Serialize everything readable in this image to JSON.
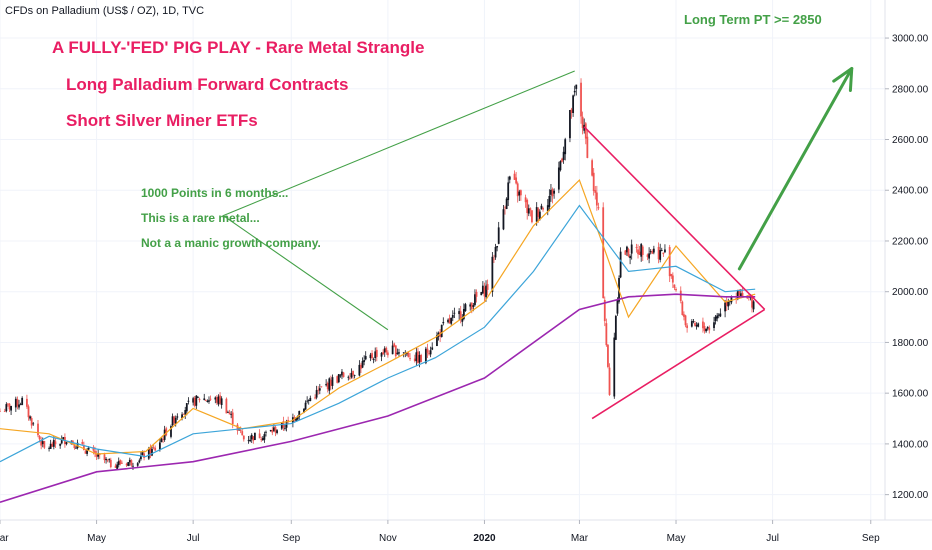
{
  "header": "CFDs on Palladium (US$ / OZ), 1D, TVC",
  "annotations": {
    "title_line1": "A FULLY-'FED' PIG PLAY - Rare Metal Strangle",
    "title_line2": "Long Palladium Forward Contracts",
    "title_line3": "Short Silver Miner ETFs",
    "note1": "1000 Points in 6 months...",
    "note2": "This is a rare metal...",
    "note3": "Not a a manic growth company.",
    "target": "Long Term PT >= 2850"
  },
  "colors": {
    "up_candle": "#131722",
    "down_candle": "#ef5350",
    "ema_fast": "#f5a623",
    "ema_mid": "#3da5d9",
    "ema_slow": "#9c27b0",
    "trend_green": "#43a047",
    "triangle_pink": "#e91e63"
  },
  "chart_data": {
    "type": "line",
    "title": "CFDs on Palladium (US$ / OZ), 1D, TVC",
    "xlabel": "",
    "ylabel": "",
    "x_range": [
      "2019-03-01",
      "2020-09-10"
    ],
    "ylim": [
      1100,
      3150
    ],
    "y_scale": "linear",
    "y_ticks": [
      "1200.00",
      "1400.00",
      "1600.00",
      "1800.00",
      "2000.00",
      "2200.00",
      "2400.00",
      "2600.00",
      "2800.00",
      "3000.00"
    ],
    "y_tick_values": [
      1200,
      1400,
      1600,
      1800,
      2000,
      2200,
      2400,
      2600,
      2800,
      3000
    ],
    "x_ticks": [
      "Mar",
      "May",
      "Jul",
      "Sep",
      "Nov",
      "2020",
      "Mar",
      "May",
      "Jul",
      "Sep"
    ],
    "x_tick_dates": [
      "2019-03-01",
      "2019-05-01",
      "2019-07-01",
      "2019-09-01",
      "2019-11-01",
      "2020-01-01",
      "2020-03-01",
      "2020-05-01",
      "2020-07-01",
      "2020-09-01"
    ],
    "series": [
      {
        "name": "",
        "kind": "price",
        "x": [
          "2019-03-01",
          "2019-03-15",
          "2019-03-29",
          "2019-04-12",
          "2019-04-26",
          "2019-05-10",
          "2019-05-24",
          "2019-06-07",
          "2019-06-21",
          "2019-07-05",
          "2019-07-19",
          "2019-08-02",
          "2019-08-16",
          "2019-08-30",
          "2019-09-13",
          "2019-09-27",
          "2019-10-11",
          "2019-10-25",
          "2019-11-08",
          "2019-11-22",
          "2019-12-06",
          "2019-12-20",
          "2020-01-03",
          "2020-01-17",
          "2020-01-31",
          "2020-02-14",
          "2020-02-28",
          "2020-03-06",
          "2020-03-13",
          "2020-03-20",
          "2020-03-27",
          "2020-04-10",
          "2020-04-24",
          "2020-05-08",
          "2020-05-22",
          "2020-06-05",
          "2020-06-19"
        ],
        "y": [
          1530,
          1570,
          1380,
          1420,
          1370,
          1320,
          1330,
          1380,
          1520,
          1580,
          1570,
          1420,
          1440,
          1480,
          1580,
          1650,
          1690,
          1760,
          1770,
          1730,
          1860,
          1930,
          2020,
          2450,
          2290,
          2400,
          2800,
          2560,
          2300,
          1590,
          2150,
          2170,
          2150,
          1860,
          1860,
          1990,
          1960
        ]
      },
      {
        "name": "",
        "kind": "ema_fast",
        "x": [
          "2019-03-01",
          "2019-04-01",
          "2019-05-01",
          "2019-06-01",
          "2019-07-01",
          "2019-08-01",
          "2019-09-01",
          "2019-10-01",
          "2019-11-01",
          "2019-12-01",
          "2020-01-01",
          "2020-02-01",
          "2020-03-01",
          "2020-03-15",
          "2020-04-01",
          "2020-05-01",
          "2020-06-01",
          "2020-06-20"
        ],
        "y": [
          1460,
          1440,
          1360,
          1370,
          1540,
          1460,
          1490,
          1620,
          1720,
          1820,
          1960,
          2260,
          2440,
          2200,
          1900,
          2180,
          1960,
          1990
        ]
      },
      {
        "name": "",
        "kind": "ema_mid",
        "x": [
          "2019-03-01",
          "2019-04-01",
          "2019-05-01",
          "2019-06-01",
          "2019-07-01",
          "2019-08-01",
          "2019-09-01",
          "2019-10-01",
          "2019-11-01",
          "2019-12-01",
          "2020-01-01",
          "2020-02-01",
          "2020-03-01",
          "2020-04-01",
          "2020-05-01",
          "2020-06-01",
          "2020-06-20"
        ],
        "y": [
          1330,
          1430,
          1380,
          1350,
          1440,
          1460,
          1480,
          1560,
          1660,
          1740,
          1860,
          2080,
          2340,
          2080,
          2100,
          2000,
          2010
        ]
      },
      {
        "name": "",
        "kind": "ema_slow",
        "x": [
          "2019-03-01",
          "2019-05-01",
          "2019-07-01",
          "2019-09-01",
          "2019-11-01",
          "2020-01-01",
          "2020-03-01",
          "2020-04-01",
          "2020-05-01",
          "2020-06-01",
          "2020-06-20"
        ],
        "y": [
          1170,
          1290,
          1330,
          1410,
          1510,
          1660,
          1930,
          1980,
          1990,
          1980,
          1980
        ]
      }
    ],
    "drawings": [
      {
        "name": "",
        "kind": "green-line-1",
        "points": [
          [
            "2019-11-01",
            1850
          ],
          [
            "2019-07-20",
            2300
          ]
        ]
      },
      {
        "name": "",
        "kind": "green-line-2",
        "points": [
          [
            "2019-07-20",
            2300
          ],
          [
            "2020-02-27",
            2870
          ]
        ]
      },
      {
        "name": "",
        "kind": "triangle-upper",
        "points": [
          [
            "2020-03-04",
            2650
          ],
          [
            "2020-06-26",
            1930
          ]
        ]
      },
      {
        "name": "",
        "kind": "triangle-lower",
        "points": [
          [
            "2020-03-09",
            1500
          ],
          [
            "2020-06-26",
            1930
          ]
        ]
      },
      {
        "name": "",
        "kind": "target-arrow",
        "points": [
          [
            "2020-06-10",
            2090
          ],
          [
            "2020-08-20",
            2880
          ]
        ]
      }
    ]
  }
}
